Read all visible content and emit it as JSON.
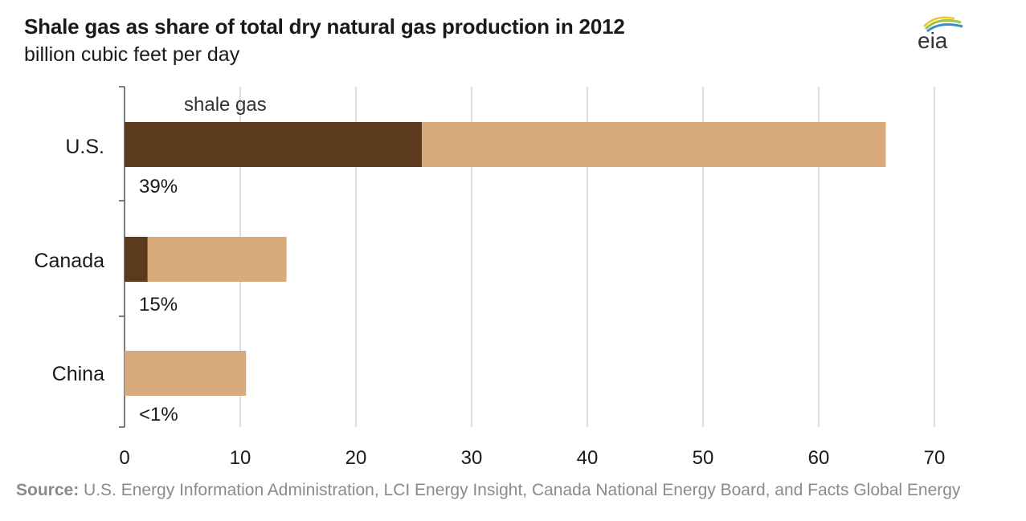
{
  "header": {
    "title": "Shale gas as share of total dry natural gas production in 2012",
    "subtitle": "billion cubic feet per day",
    "logo_text": "eia"
  },
  "source": {
    "label": "Source:",
    "text": " U.S. Energy Information Administration, LCI Energy Insight, Canada National Energy Board, and Facts Global Energy"
  },
  "chart_data": {
    "type": "bar",
    "orientation": "horizontal",
    "stacked": true,
    "categories": [
      "U.S.",
      "Canada",
      "China"
    ],
    "series": [
      {
        "name": "shale gas",
        "values": [
          25.7,
          2.0,
          0.0
        ],
        "color": "#5c3a1e"
      },
      {
        "values": [
          40.1,
          12.0,
          10.5
        ],
        "color": "#d9aa7c"
      }
    ],
    "totals": [
      65.8,
      14.0,
      10.5
    ],
    "share_labels": [
      "39%",
      "15%",
      "<1%"
    ],
    "xlim": [
      0,
      70
    ],
    "xticks": [
      "0",
      "10",
      "20",
      "30",
      "40",
      "50",
      "60",
      "70"
    ],
    "series_label": "shale gas",
    "grid": true
  }
}
